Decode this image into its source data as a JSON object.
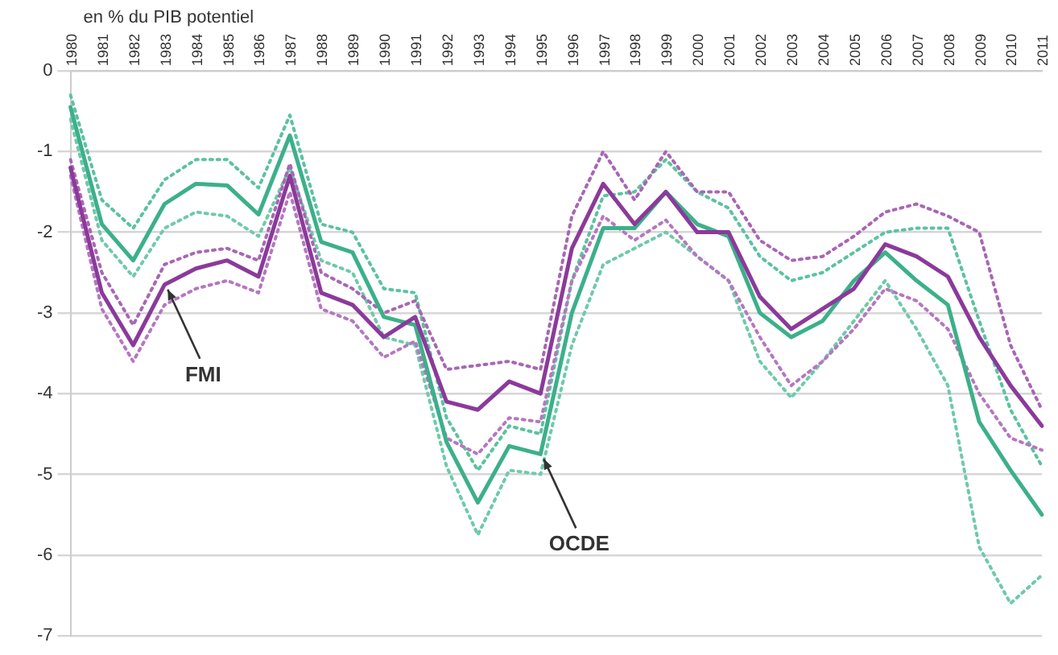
{
  "chart_data": {
    "type": "line",
    "ylabel": "en % du PIB potentiel",
    "categories": [
      "1980",
      "1981",
      "1982",
      "1983",
      "1984",
      "1985",
      "1986",
      "1987",
      "1988",
      "1989",
      "1990",
      "1991",
      "1992",
      "1993",
      "1994",
      "1995",
      "1996",
      "1997",
      "1998",
      "1999",
      "2000",
      "2001",
      "2002",
      "2003",
      "2004",
      "2005",
      "2006",
      "2007",
      "2008",
      "2009",
      "2010",
      "2011"
    ],
    "series": [
      {
        "color": "#8b3a9b",
        "values": [
          -1.2,
          -2.75,
          -3.4,
          -2.65,
          -2.45,
          -2.35,
          -2.55,
          -1.3,
          -2.75,
          -2.9,
          -3.3,
          -3.05,
          -4.1,
          -4.2,
          -3.85,
          -4.0,
          -2.2,
          -1.4,
          -1.9,
          -1.5,
          -2.0,
          -2.0,
          -2.8,
          -3.2,
          -2.95,
          -2.7,
          -2.15,
          -2.3,
          -2.55,
          -3.3,
          -3.9,
          -4.4
        ]
      },
      {
        "color": "#3cb08a",
        "values": [
          -0.45,
          -1.9,
          -2.35,
          -1.65,
          -1.4,
          -1.42,
          -1.78,
          -0.8,
          -2.12,
          -2.25,
          -3.05,
          -3.15,
          -4.6,
          -5.35,
          -4.65,
          -4.75,
          -3.0,
          -1.95,
          -1.95,
          -1.5,
          -1.9,
          -2.05,
          -3.0,
          -3.3,
          -3.1,
          -2.6,
          -2.25,
          -2.6,
          -2.9,
          -4.35,
          -4.95,
          -5.5
        ]
      },
      {
        "color": "#a866b5",
        "line_style": "dotted",
        "values": [
          -1.1,
          -2.5,
          -3.15,
          -2.4,
          -2.25,
          -2.2,
          -2.35,
          -1.15,
          -2.5,
          -2.7,
          -3.0,
          -2.85,
          -3.7,
          -3.65,
          -3.6,
          -3.7,
          -1.8,
          -1.0,
          -1.6,
          -1.0,
          -1.5,
          -1.5,
          -2.1,
          -2.35,
          -2.3,
          -2.05,
          -1.75,
          -1.65,
          -1.8,
          -2.0,
          -3.4,
          -4.2
        ]
      },
      {
        "color": "#b577c0",
        "line_style": "dotted",
        "values": [
          -1.3,
          -2.95,
          -3.6,
          -2.9,
          -2.7,
          -2.6,
          -2.75,
          -1.5,
          -2.95,
          -3.1,
          -3.55,
          -3.35,
          -4.55,
          -4.75,
          -4.3,
          -4.35,
          -2.6,
          -1.8,
          -2.1,
          -1.85,
          -2.3,
          -2.6,
          -3.3,
          -3.9,
          -3.6,
          -3.2,
          -2.7,
          -2.85,
          -3.2,
          -4.0,
          -4.55,
          -4.7
        ]
      },
      {
        "color": "#5cc29f",
        "line_style": "dotted",
        "values": [
          -0.3,
          -1.6,
          -1.95,
          -1.35,
          -1.1,
          -1.1,
          -1.45,
          -0.55,
          -1.9,
          -2.0,
          -2.7,
          -2.75,
          -4.3,
          -4.95,
          -4.4,
          -4.5,
          -2.6,
          -1.55,
          -1.5,
          -1.1,
          -1.5,
          -1.7,
          -2.3,
          -2.6,
          -2.5,
          -2.25,
          -2.0,
          -1.95,
          -1.95,
          -3.1,
          -4.2,
          -4.9
        ]
      },
      {
        "color": "#6fcaa9",
        "line_style": "dotted",
        "values": [
          -0.6,
          -2.1,
          -2.55,
          -1.95,
          -1.75,
          -1.8,
          -2.05,
          -1.2,
          -2.35,
          -2.5,
          -3.3,
          -3.4,
          -4.9,
          -5.75,
          -4.95,
          -5.0,
          -3.4,
          -2.4,
          -2.2,
          -2.0,
          -2.3,
          -2.6,
          -3.6,
          -4.05,
          -3.6,
          -3.1,
          -2.6,
          -3.2,
          -3.9,
          -5.9,
          -6.6,
          -6.25
        ]
      }
    ],
    "ylim": [
      -7,
      0
    ],
    "yticks": [
      -7,
      -6,
      -5,
      -4,
      -3,
      -2,
      -1,
      0
    ],
    "grid": "y",
    "legend": false,
    "marker": "none",
    "line_style": "solid",
    "annotations": [
      {
        "text": "FMI",
        "x": "1983",
        "y": -2.65
      },
      {
        "text": "OCDE",
        "x": "1995",
        "y": -4.75
      }
    ]
  }
}
